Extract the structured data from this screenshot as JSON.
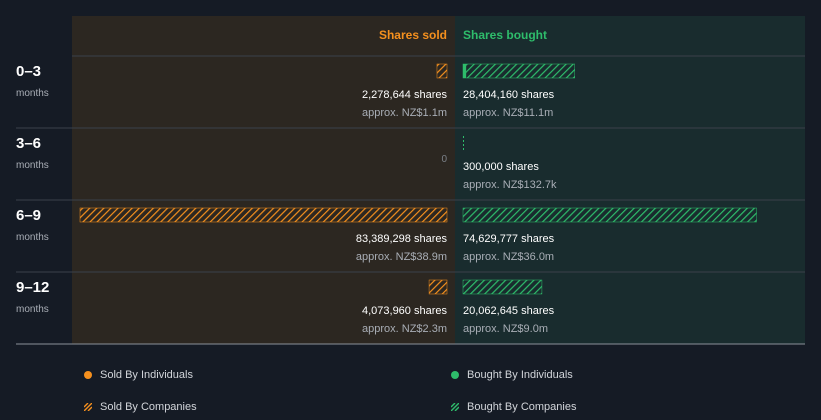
{
  "chart_data": {
    "type": "bar",
    "orientation": "diverging-horizontal",
    "headers": {
      "sold": "Shares sold",
      "bought": "Shares bought"
    },
    "categories": [
      {
        "label": "0–3",
        "sublabel": "months"
      },
      {
        "label": "3–6",
        "sublabel": "months"
      },
      {
        "label": "6–9",
        "sublabel": "months"
      },
      {
        "label": "9–12",
        "sublabel": "months"
      }
    ],
    "series": [
      {
        "name": "Sold By Companies",
        "side": "sold",
        "values": [
          2278644,
          0,
          83389298,
          4073960
        ],
        "shares_text": [
          "2,278,644 shares",
          "0",
          "83,389,298 shares",
          "4,073,960 shares"
        ],
        "approx_text": [
          "approx. NZ$1.1m",
          "",
          "approx. NZ$38.9m",
          "approx. NZ$2.3m"
        ]
      },
      {
        "name": "Bought By Companies",
        "side": "bought",
        "values": [
          28404160,
          300000,
          74629777,
          20062645
        ],
        "shares_text": [
          "28,404,160 shares",
          "300,000 shares",
          "74,629,777 shares",
          "20,062,645 shares"
        ],
        "approx_text": [
          "approx. NZ$11.1m",
          "approx. NZ$132.7k",
          "approx. NZ$36.0m",
          "approx. NZ$9.0m"
        ]
      },
      {
        "name": "Bought By Individuals",
        "side": "bought",
        "values": [
          800000,
          0,
          0,
          0
        ]
      }
    ],
    "legend": {
      "placement": "bottom",
      "items": [
        {
          "label": "Sold By Individuals",
          "marker": "dot",
          "color": "#f5901e"
        },
        {
          "label": "Bought By Individuals",
          "marker": "dot",
          "color": "#2ebd6b"
        },
        {
          "label": "Sold By Companies",
          "marker": "hatch",
          "color": "#f5901e"
        },
        {
          "label": "Bought By Companies",
          "marker": "hatch",
          "color": "#2ebd6b"
        }
      ]
    },
    "colors": {
      "background": "#151b25",
      "sold_panel": "#2c2721",
      "bought_panel": "#192c2e",
      "sold": "#f5901e",
      "bought": "#2ebd6b"
    }
  }
}
